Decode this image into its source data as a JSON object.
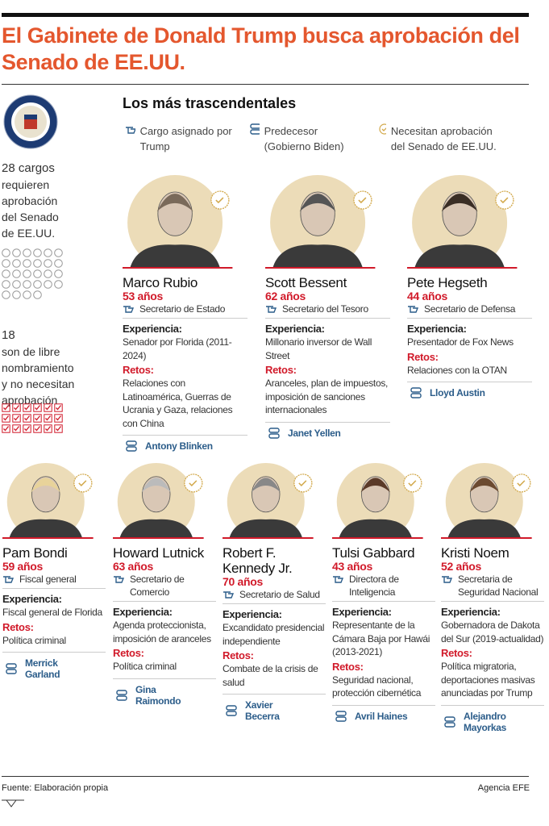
{
  "header": {
    "title": "El Gabinete de Donald Trump busca aprobación del Senado de EE.UU."
  },
  "sidebar": {
    "required": {
      "count": "28 cargos",
      "text": "requieren aprobación del Senado de EE.UU."
    },
    "free": {
      "count": "18",
      "text": "son de libre nombramiento y no necesitan aprobación"
    }
  },
  "section_title": "Los más trascendentales",
  "legend": [
    {
      "label": "Cargo asignado por Trump"
    },
    {
      "label": "Predecesor (Gobierno Biden)"
    },
    {
      "label": "Necesitan aprobación del Senado de EE.UU."
    }
  ],
  "labels": {
    "experience": "Experiencia:",
    "challenges": "Retos:"
  },
  "people": [
    {
      "name": "Marco Rubio",
      "age": "53 años",
      "role": "Secretario de Estado",
      "experience": "Senador por Florida (2011-2024)",
      "challenges": "Relaciones con Latinoamérica, Guerras de Ucrania y Gaza, relaciones con China",
      "predecessor": "Antony Blinken"
    },
    {
      "name": "Scott Bessent",
      "age": "62 años",
      "role": "Secretario del Tesoro",
      "experience": "Millonario inversor de Wall Street",
      "challenges": "Aranceles, plan de impuestos, imposición de sanciones internacionales",
      "predecessor": "Janet Yellen"
    },
    {
      "name": "Pete Hegseth",
      "age": "44 años",
      "role": "Secretario de Defensa",
      "experience": "Presentador de Fox News",
      "challenges": "Relaciones con la OTAN",
      "predecessor": "Lloyd Austin"
    },
    {
      "name": "Pam Bondi",
      "age": "59 años",
      "role": "Fiscal general",
      "experience": "Fiscal general de Florida",
      "challenges": "Política criminal",
      "predecessor": "Merrick Garland"
    },
    {
      "name": "Howard Lutnick",
      "age": "63 años",
      "role": "Secretario de Comercio",
      "experience": "Agenda proteccionista, imposición de aranceles",
      "challenges": "Política criminal",
      "predecessor": "Gina Raimondo"
    },
    {
      "name": "Robert F. Kennedy Jr.",
      "age": "70 años",
      "role": "Secretario de Salud",
      "experience": "Excandidato presidencial independiente",
      "challenges": "Combate de la crisis de salud",
      "predecessor": "Xavier Becerra"
    },
    {
      "name": "Tulsi Gabbard",
      "age": "43 años",
      "role": "Directora de Inteligencia",
      "experience": "Representante de la Cámara Baja por Hawái (2013-2021)",
      "challenges": "Seguridad nacional, protección cibernética",
      "predecessor": "Avril Haines"
    },
    {
      "name": "Kristi Noem",
      "age": "52 años",
      "role": "Secretaria de Seguridad Nacional",
      "experience": "Gobernadora de Dakota del Sur (2019-actualidad)",
      "challenges": "Política migratoria, deportaciones masivas anunciadas por Trump",
      "predecessor": "Alejandro Mayorkas"
    }
  ],
  "footer": {
    "source": "Fuente: Elaboración propia",
    "credit": "Agencia EFE"
  }
}
